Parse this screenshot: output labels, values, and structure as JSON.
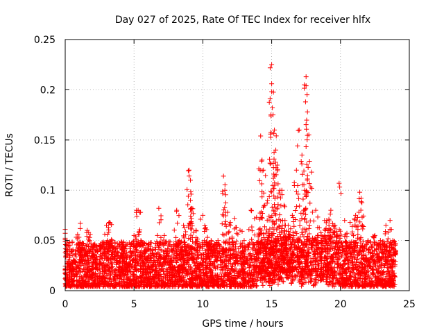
{
  "chart_data": {
    "type": "scatter",
    "title": "Day 027 of 2025, Rate Of TEC Index for receiver hlfx",
    "xlabel": "GPS time / hours",
    "ylabel": "ROTI / TECUs",
    "xlim": [
      0,
      25
    ],
    "ylim": [
      0,
      0.25
    ],
    "xticks": [
      0,
      5,
      10,
      15,
      20,
      25
    ],
    "yticks": [
      0,
      0.05,
      0.1,
      0.15,
      0.2,
      0.25
    ],
    "xtick_labels": [
      "0",
      "5",
      "10",
      "15",
      "20",
      "25"
    ],
    "ytick_labels": [
      "0",
      "0.05",
      "0.1",
      "0.15",
      "0.2",
      "0.25"
    ],
    "grid": true,
    "marker": "+",
    "color": "#ff0000",
    "series": [
      {
        "x": [
          0.0,
          0.0,
          0.3,
          0.6,
          0.9,
          1.1,
          1.2,
          1.6,
          1.7,
          2.1,
          2.7,
          3.0,
          3.2,
          3.4,
          3.7,
          4.1,
          4.4,
          4.6,
          5.0,
          5.2,
          5.3,
          5.5,
          5.8,
          6.2,
          6.7,
          6.8,
          7.2,
          7.5,
          8.1,
          8.3,
          8.6,
          9.0,
          9.1,
          9.1,
          9.2,
          9.5,
          10.0,
          10.2,
          10.3,
          10.6,
          11.1,
          11.5,
          11.6,
          11.8,
          12.0,
          12.3,
          12.7,
          13.0,
          13.5,
          13.9,
          14.2,
          14.3,
          14.4,
          14.5,
          14.7,
          15.0,
          15.0,
          15.0,
          15.1,
          15.2,
          15.3,
          15.4,
          15.6,
          15.8,
          15.9,
          16.0,
          16.2,
          16.5,
          16.8,
          17.0,
          17.2,
          17.4,
          17.5,
          17.5,
          17.6,
          17.7,
          17.9,
          18.2,
          18.6,
          19.0,
          19.3,
          19.6,
          19.9,
          20.3,
          20.7,
          21.1,
          21.4,
          21.5,
          21.6,
          22.0,
          22.5,
          22.9,
          23.3,
          23.6,
          23.8,
          24.0
        ],
        "y": [
          0.061,
          0.012,
          0.018,
          0.03,
          0.056,
          0.067,
          0.045,
          0.06,
          0.058,
          0.035,
          0.045,
          0.065,
          0.068,
          0.05,
          0.042,
          0.038,
          0.045,
          0.025,
          0.055,
          0.074,
          0.08,
          0.05,
          0.04,
          0.035,
          0.055,
          0.082,
          0.055,
          0.045,
          0.08,
          0.05,
          0.065,
          0.12,
          0.11,
          0.09,
          0.082,
          0.06,
          0.075,
          0.063,
          0.048,
          0.05,
          0.05,
          0.114,
          0.1,
          0.078,
          0.068,
          0.072,
          0.06,
          0.05,
          0.08,
          0.073,
          0.154,
          0.13,
          0.12,
          0.085,
          0.09,
          0.225,
          0.206,
          0.198,
          0.175,
          0.16,
          0.14,
          0.125,
          0.1,
          0.07,
          0.085,
          0.065,
          0.065,
          0.075,
          0.12,
          0.16,
          0.135,
          0.1,
          0.213,
          0.204,
          0.178,
          0.155,
          0.118,
          0.08,
          0.055,
          0.07,
          0.08,
          0.065,
          0.107,
          0.07,
          0.068,
          0.075,
          0.098,
          0.092,
          0.065,
          0.05,
          0.055,
          0.05,
          0.065,
          0.07,
          0.05,
          0.04
        ]
      }
    ],
    "dense_band": {
      "note_free": true,
      "x_range": [
        0,
        24
      ],
      "y_min": 0.0,
      "y_max": 0.045
    }
  }
}
